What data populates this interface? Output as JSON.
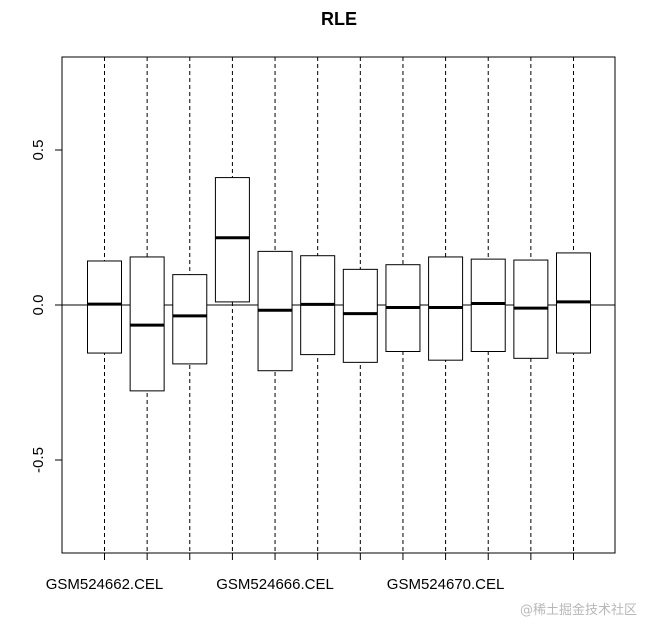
{
  "chart_data": {
    "type": "box",
    "title": "RLE",
    "xlabel": "",
    "ylabel": "",
    "ylim": [
      -0.8,
      0.8
    ],
    "yticks": [
      {
        "value": -0.5,
        "label": "-0.5"
      },
      {
        "value": 0.0,
        "label": "0.0"
      },
      {
        "value": 0.5,
        "label": "0.5"
      }
    ],
    "xtick_labels": [
      "GSM524662.CEL",
      "",
      "",
      "",
      "GSM524666.CEL",
      "",
      "",
      "",
      "GSM524670.CEL",
      "",
      "",
      ""
    ],
    "reference_line": 0.0,
    "grid": false,
    "boxes": [
      {
        "q1": -0.155,
        "median": 0.003,
        "q3": 0.142
      },
      {
        "q1": -0.277,
        "median": -0.065,
        "q3": 0.155
      },
      {
        "q1": -0.19,
        "median": -0.035,
        "q3": 0.098
      },
      {
        "q1": 0.01,
        "median": 0.217,
        "q3": 0.411
      },
      {
        "q1": -0.212,
        "median": -0.017,
        "q3": 0.173
      },
      {
        "q1": -0.16,
        "median": 0.002,
        "q3": 0.159
      },
      {
        "q1": -0.185,
        "median": -0.028,
        "q3": 0.115
      },
      {
        "q1": -0.15,
        "median": -0.008,
        "q3": 0.13
      },
      {
        "q1": -0.178,
        "median": -0.008,
        "q3": 0.155
      },
      {
        "q1": -0.15,
        "median": 0.005,
        "q3": 0.148
      },
      {
        "q1": -0.172,
        "median": -0.01,
        "q3": 0.145
      },
      {
        "q1": -0.155,
        "median": 0.01,
        "q3": 0.168
      }
    ],
    "colors": {
      "box_fill": "#ffffff",
      "stroke": "#000000"
    }
  },
  "watermark": "@稀土掘金技术社区"
}
